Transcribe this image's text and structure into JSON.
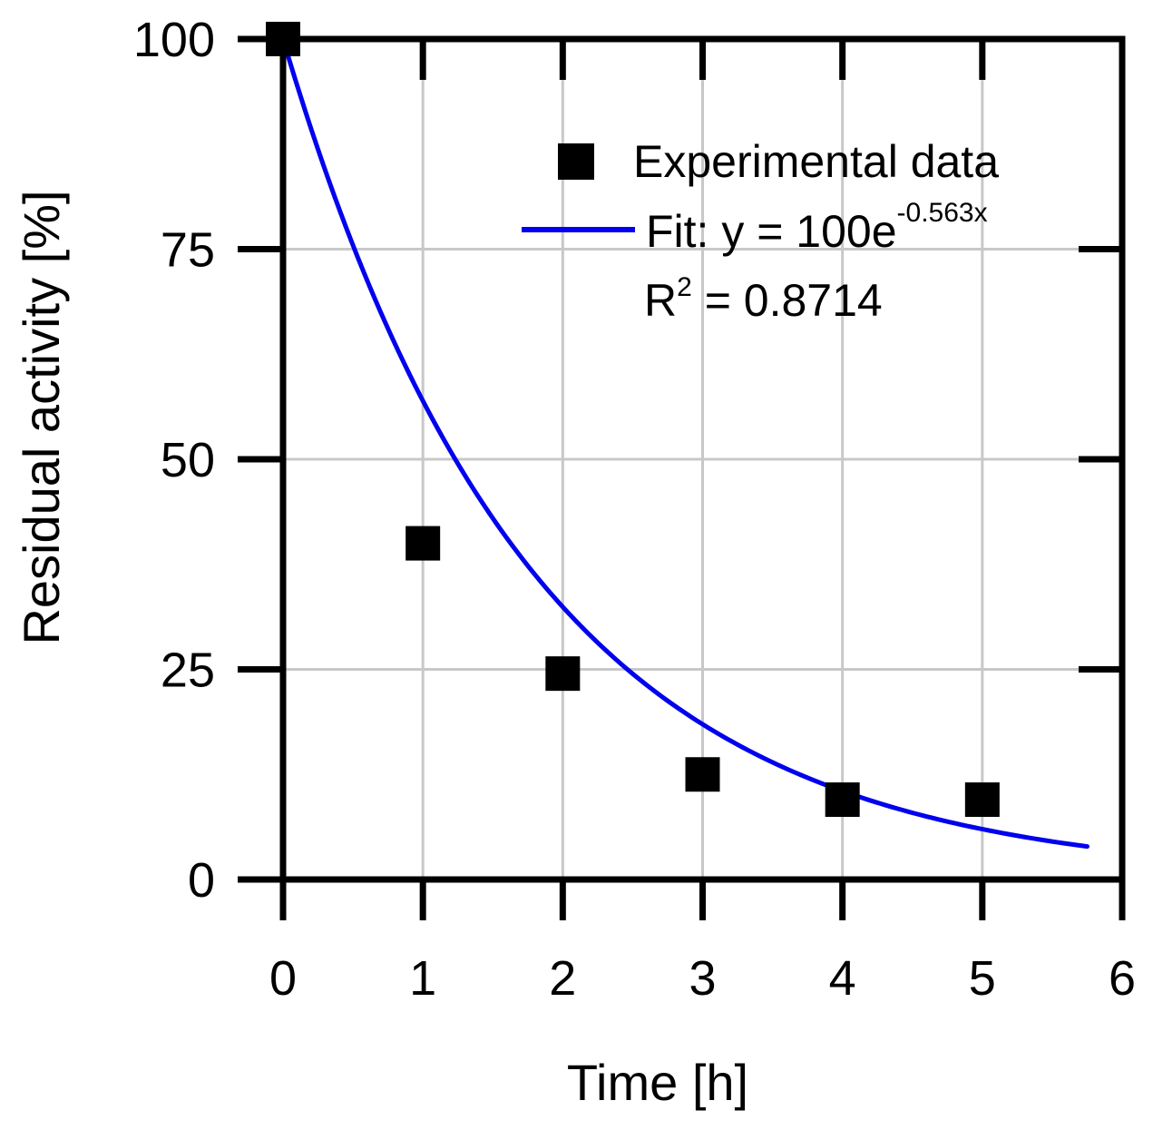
{
  "chart_data": {
    "type": "scatter",
    "title": "",
    "xlabel": "Time [h]",
    "ylabel": "Residual activity [%]",
    "xlim": [
      0,
      6
    ],
    "ylim": [
      0,
      100
    ],
    "x_ticks": [
      0,
      1,
      2,
      3,
      4,
      5,
      6
    ],
    "y_ticks": [
      0,
      25,
      50,
      75,
      100
    ],
    "grid": true,
    "legend_position": "top-right",
    "series": [
      {
        "name": "Experimental data",
        "kind": "scatter",
        "marker": "square",
        "color": "#000000",
        "x": [
          0,
          1,
          2,
          3,
          4,
          5
        ],
        "y": [
          100,
          40,
          24.5,
          12.5,
          9.5,
          9.5
        ]
      },
      {
        "name": "Fit",
        "kind": "line",
        "color": "#0000ee",
        "model": "exponential",
        "amplitude": 100,
        "rate": -0.563,
        "x_range": [
          0,
          5.75
        ]
      }
    ],
    "legend": {
      "scatter_label": "Experimental data",
      "fit_prefix": "Fit: y = 100e",
      "fit_exponent": "-0.563x",
      "r2_prefix": "R",
      "r2_sup": "2",
      "r2_value": " = 0.8714"
    }
  }
}
